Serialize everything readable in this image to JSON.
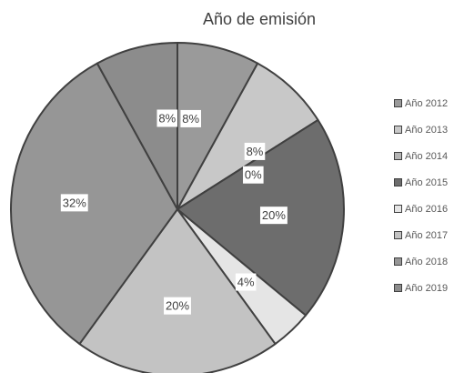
{
  "chart_data": {
    "type": "pie",
    "title": "Año de emisión",
    "slices": [
      {
        "label": "Año 2012",
        "value": 8,
        "display": "8%",
        "color": "#9a9a9a"
      },
      {
        "label": "Año 2013",
        "value": 8,
        "display": "8%",
        "color": "#c8c8c8"
      },
      {
        "label": "Año 2014",
        "value": 0,
        "display": "0%",
        "color": "#b5b5b5"
      },
      {
        "label": "Año 2015",
        "value": 20,
        "display": "20%",
        "color": "#6d6d6d"
      },
      {
        "label": "Año 2016",
        "value": 4,
        "display": "4%",
        "color": "#e5e5e5"
      },
      {
        "label": "Año 2017",
        "value": 20,
        "display": "20%",
        "color": "#c3c3c3"
      },
      {
        "label": "Año 2018",
        "value": 32,
        "display": "32%",
        "color": "#969696"
      },
      {
        "label": "Año 2019",
        "value": 8,
        "display": "8%",
        "color": "#8c8c8c"
      }
    ],
    "legend_position": "right",
    "outline_color": "#404040"
  }
}
